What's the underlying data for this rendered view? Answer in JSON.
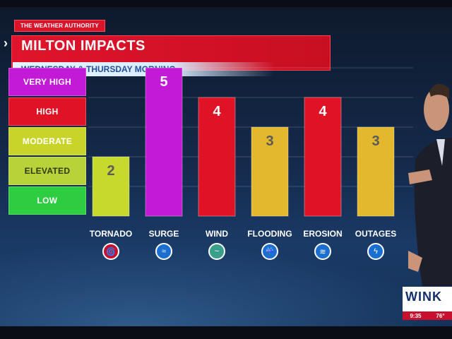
{
  "brand": "THE WEATHER AUTHORITY",
  "title": "MILTON IMPACTS",
  "subtitle": "WEDNESDAY & THURSDAY MORNING",
  "logo": {
    "name": "WINK",
    "time": "9:35",
    "temp": "76°"
  },
  "levels": [
    {
      "label": "VERY HIGH",
      "color": "#c21ad6",
      "text": "#ffffff"
    },
    {
      "label": "HIGH",
      "color": "#e01326",
      "text": "#ffffff"
    },
    {
      "label": "MODERATE",
      "color": "#c9d42a",
      "text": "#ffffff"
    },
    {
      "label": "ELEVATED",
      "color": "#b8d33a",
      "text": "#2d3a10"
    },
    {
      "label": "LOW",
      "color": "#2ecc40",
      "text": "#ffffff"
    }
  ],
  "chart_data": {
    "type": "bar",
    "categories": [
      "TORNADO",
      "SURGE",
      "WIND",
      "FLOODING",
      "EROSION",
      "OUTAGES"
    ],
    "values": [
      2,
      5,
      4,
      3,
      4,
      3
    ],
    "colors": [
      "#c6d92c",
      "#c21ad6",
      "#e01326",
      "#e3b82c",
      "#e01326",
      "#e3b82c"
    ],
    "icons": [
      "tornado-icon",
      "surge-icon",
      "wind-icon",
      "flooding-icon",
      "erosion-icon",
      "outages-icon"
    ],
    "ylim": [
      0,
      5
    ],
    "title": "MILTON IMPACTS",
    "legend": "left"
  }
}
